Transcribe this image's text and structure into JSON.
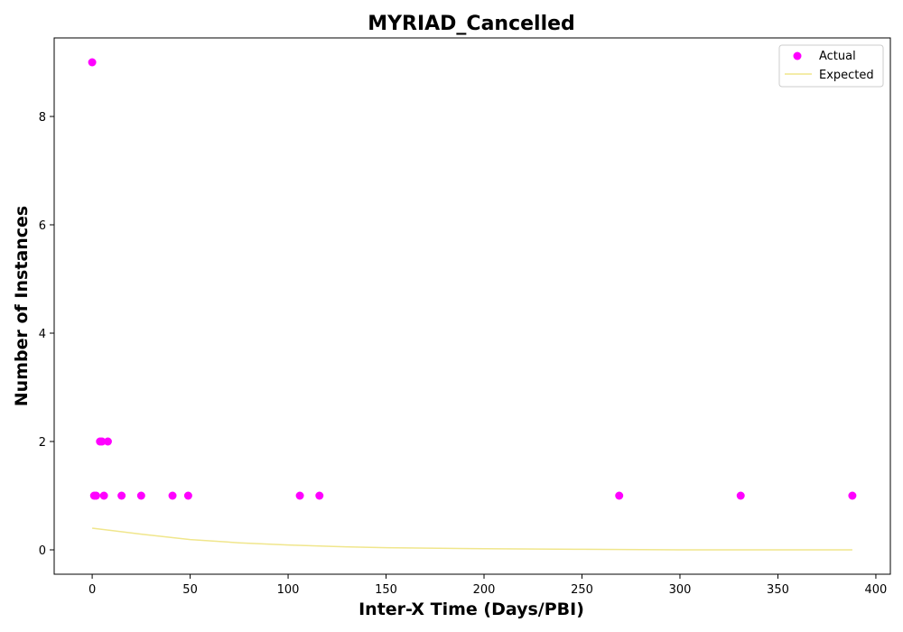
{
  "chart_data": {
    "type": "scatter",
    "title": "MYRIAD_Cancelled",
    "xlabel": "Inter-X Time (Days/PBI)",
    "ylabel": "Number of Instances",
    "xlim": [
      -19.4,
      407.4
    ],
    "ylim": [
      -0.45,
      9.45
    ],
    "x_ticks": [
      0,
      50,
      100,
      150,
      200,
      250,
      300,
      350,
      400
    ],
    "y_ticks": [
      0,
      2,
      4,
      6,
      8
    ],
    "grid": false,
    "legend": "top-right",
    "series": [
      {
        "name": "Actual",
        "kind": "scatter",
        "color": "#ff00ff",
        "points": [
          {
            "x": 0,
            "y": 9
          },
          {
            "x": 1,
            "y": 1
          },
          {
            "x": 2,
            "y": 1
          },
          {
            "x": 4,
            "y": 2
          },
          {
            "x": 5,
            "y": 2
          },
          {
            "x": 6,
            "y": 1
          },
          {
            "x": 8,
            "y": 2
          },
          {
            "x": 15,
            "y": 1
          },
          {
            "x": 25,
            "y": 1
          },
          {
            "x": 41,
            "y": 1
          },
          {
            "x": 49,
            "y": 1
          },
          {
            "x": 106,
            "y": 1
          },
          {
            "x": 116,
            "y": 1
          },
          {
            "x": 269,
            "y": 1
          },
          {
            "x": 331,
            "y": 1
          },
          {
            "x": 388,
            "y": 1
          }
        ]
      },
      {
        "name": "Expected",
        "kind": "line",
        "color": "#f0e68c",
        "points": [
          {
            "x": 0,
            "y": 0.4
          },
          {
            "x": 25,
            "y": 0.29
          },
          {
            "x": 50,
            "y": 0.19
          },
          {
            "x": 75,
            "y": 0.13
          },
          {
            "x": 100,
            "y": 0.09
          },
          {
            "x": 125,
            "y": 0.06
          },
          {
            "x": 150,
            "y": 0.04
          },
          {
            "x": 200,
            "y": 0.02
          },
          {
            "x": 250,
            "y": 0.01
          },
          {
            "x": 300,
            "y": 0.0
          },
          {
            "x": 350,
            "y": 0.0
          },
          {
            "x": 388,
            "y": 0.0
          }
        ]
      }
    ]
  }
}
